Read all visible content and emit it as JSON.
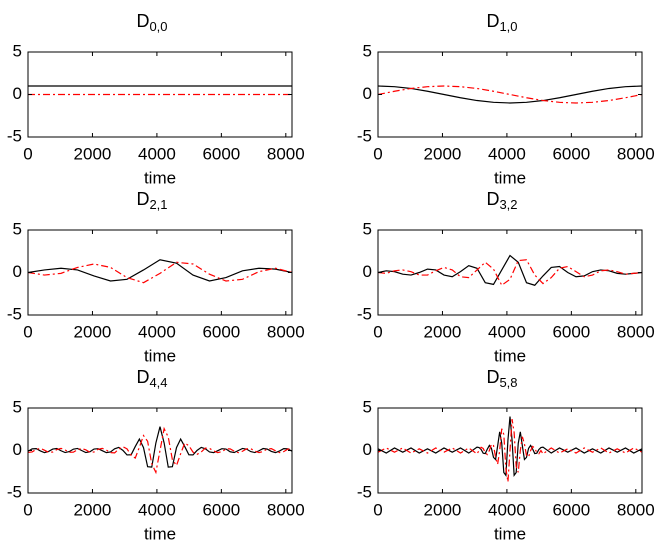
{
  "chart_data": [
    {
      "type": "line",
      "title": "D",
      "title_sub": "0,0",
      "xlabel": "time",
      "xlim": [
        0,
        8192
      ],
      "xticks": [
        0,
        2000,
        4000,
        6000,
        8000
      ],
      "ylim": [
        -5,
        5
      ],
      "yticks": [
        -5,
        0,
        5
      ],
      "x": [
        0,
        8192
      ],
      "series": [
        {
          "color": "#000000",
          "style": "solid",
          "values": [
            1,
            1
          ]
        },
        {
          "color": "#ff0000",
          "style": "dashdot",
          "values": [
            0,
            0
          ]
        }
      ]
    },
    {
      "type": "line",
      "title": "D",
      "title_sub": "1,0",
      "xlabel": "time",
      "xlim": [
        0,
        8192
      ],
      "xticks": [
        0,
        2000,
        4000,
        6000,
        8000
      ],
      "ylim": [
        -5,
        5
      ],
      "yticks": [
        -5,
        0,
        5
      ],
      "x": [
        0,
        512,
        1024,
        1536,
        2048,
        2560,
        3072,
        3584,
        4096,
        4608,
        5120,
        5632,
        6144,
        6656,
        7168,
        7680,
        8192
      ],
      "series": [
        {
          "color": "#000000",
          "style": "solid",
          "values": [
            1,
            0.92,
            0.71,
            0.38,
            0,
            -0.38,
            -0.71,
            -0.92,
            -1,
            -0.92,
            -0.71,
            -0.38,
            0,
            0.38,
            0.71,
            0.92,
            1
          ]
        },
        {
          "color": "#ff0000",
          "style": "dashdot",
          "values": [
            0,
            0.38,
            0.71,
            0.92,
            1,
            0.92,
            0.71,
            0.38,
            0,
            -0.38,
            -0.71,
            -0.92,
            -1,
            -0.92,
            -0.71,
            -0.38,
            0
          ]
        }
      ]
    },
    {
      "type": "line",
      "title": "D",
      "title_sub": "2,1",
      "xlabel": "time",
      "xlim": [
        0,
        8192
      ],
      "xticks": [
        0,
        2000,
        4000,
        6000,
        8000
      ],
      "ylim": [
        -5,
        5
      ],
      "yticks": [
        -5,
        0,
        5
      ],
      "x": [
        0,
        512,
        1024,
        1536,
        2048,
        2560,
        3072,
        3584,
        4096,
        4608,
        5120,
        5632,
        6144,
        6656,
        7168,
        7680,
        8192
      ],
      "series": [
        {
          "color": "#000000",
          "style": "solid",
          "values": [
            0,
            0.3,
            0.5,
            0.3,
            -0.4,
            -1.0,
            -0.8,
            0.3,
            1.5,
            1.1,
            -0.3,
            -1.0,
            -0.6,
            0.2,
            0.5,
            0.4,
            0
          ]
        },
        {
          "color": "#ff0000",
          "style": "dashdot",
          "values": [
            0,
            -0.3,
            -0.1,
            0.6,
            1.0,
            0.6,
            -0.6,
            -1.2,
            -0.1,
            1.2,
            1.0,
            -0.2,
            -1.0,
            -0.8,
            0.1,
            0.5,
            0
          ]
        }
      ]
    },
    {
      "type": "line",
      "title": "D",
      "title_sub": "3,2",
      "xlabel": "time",
      "xlim": [
        0,
        8192
      ],
      "xticks": [
        0,
        2000,
        4000,
        6000,
        8000
      ],
      "ylim": [
        -5,
        5
      ],
      "yticks": [
        -5,
        0,
        5
      ],
      "x": [
        0,
        256,
        512,
        768,
        1024,
        1280,
        1536,
        1792,
        2048,
        2304,
        2560,
        2816,
        3072,
        3328,
        3584,
        3840,
        4096,
        4352,
        4608,
        4864,
        5120,
        5376,
        5632,
        5888,
        6144,
        6400,
        6656,
        6912,
        7168,
        7424,
        7680,
        7936,
        8192
      ],
      "series": [
        {
          "color": "#000000",
          "style": "solid",
          "values": [
            0,
            0.2,
            0.1,
            -0.2,
            -0.3,
            0,
            0.4,
            0.3,
            -0.3,
            -0.5,
            0.1,
            0.8,
            0.5,
            -1.2,
            -1.4,
            0.3,
            2.0,
            1.2,
            -1.2,
            -1.5,
            -0.4,
            0.6,
            0.7,
            0,
            -0.5,
            -0.4,
            0.1,
            0.3,
            0.2,
            -0.1,
            -0.2,
            -0.1,
            0
          ]
        },
        {
          "color": "#ff0000",
          "style": "dashdot",
          "values": [
            0,
            -0.1,
            0.2,
            0.3,
            0.1,
            -0.3,
            -0.3,
            0.2,
            0.6,
            0.3,
            -0.5,
            -0.6,
            0.3,
            1.2,
            0.4,
            -1.5,
            -0.8,
            1.4,
            1.5,
            -0.3,
            -1.3,
            -0.6,
            0.5,
            0.7,
            0.1,
            -0.5,
            -0.3,
            0.2,
            0.3,
            0.1,
            -0.2,
            -0.1,
            0
          ]
        }
      ]
    },
    {
      "type": "line",
      "title": "D",
      "title_sub": "4,4",
      "xlabel": "time",
      "xlim": [
        0,
        8192
      ],
      "xticks": [
        0,
        2000,
        4000,
        6000,
        8000
      ],
      "ylim": [
        -5,
        5
      ],
      "yticks": [
        -5,
        0,
        5
      ],
      "x": [
        0,
        128,
        256,
        384,
        512,
        640,
        768,
        896,
        1024,
        1152,
        1280,
        1408,
        1536,
        1664,
        1792,
        1920,
        2048,
        2176,
        2304,
        2432,
        2560,
        2688,
        2816,
        2944,
        3072,
        3200,
        3328,
        3456,
        3584,
        3712,
        3840,
        3968,
        4096,
        4224,
        4352,
        4480,
        4608,
        4736,
        4864,
        4992,
        5120,
        5248,
        5376,
        5504,
        5632,
        5760,
        5888,
        6016,
        6144,
        6272,
        6400,
        6528,
        6656,
        6784,
        6912,
        7040,
        7168,
        7296,
        7424,
        7552,
        7680,
        7808,
        7936,
        8064,
        8192
      ],
      "series": [
        {
          "color": "#000000",
          "style": "solid",
          "values": [
            -0.09,
            0.19,
            0.22,
            -0.05,
            -0.25,
            -0.11,
            0.17,
            0.23,
            -0.03,
            -0.24,
            -0.13,
            0.16,
            0.24,
            0,
            -0.24,
            -0.15,
            0.17,
            0.21,
            -0.02,
            -0.25,
            -0.17,
            0.2,
            0.36,
            0.02,
            -0.52,
            -0.5,
            0.46,
            1.34,
            0.34,
            -1.91,
            -1.95,
            0.89,
            2.8,
            0.89,
            -1.95,
            -1.91,
            0.34,
            1.34,
            0.46,
            -0.5,
            -0.52,
            0.02,
            0.36,
            0.2,
            -0.17,
            -0.25,
            -0.02,
            0.21,
            0.17,
            -0.15,
            -0.24,
            0,
            0.24,
            0.16,
            -0.13,
            -0.24,
            -0.03,
            0.23,
            0.17,
            -0.11,
            -0.25,
            -0.05,
            0.22,
            0.19,
            -0.09
          ]
        },
        {
          "color": "#ff0000",
          "style": "dashdot",
          "values": [
            -0.23,
            -0.17,
            0.13,
            0.25,
            0.04,
            -0.22,
            -0.18,
            0.11,
            0.25,
            0.06,
            -0.21,
            -0.2,
            0.09,
            0.25,
            0.08,
            -0.2,
            -0.18,
            0.14,
            0.25,
            0.05,
            -0.25,
            -0.28,
            0.17,
            0.45,
            0.19,
            -0.56,
            -0.89,
            0.39,
            1.76,
            1.08,
            -1.58,
            -2.57,
            0,
            2.57,
            1.58,
            -1.08,
            -1.76,
            -0.39,
            0.89,
            0.56,
            -0.19,
            -0.45,
            -0.17,
            0.28,
            0.25,
            -0.05,
            -0.25,
            -0.14,
            0.18,
            0.2,
            -0.08,
            -0.25,
            -0.09,
            0.2,
            0.21,
            -0.06,
            -0.25,
            -0.11,
            0.18,
            0.22,
            -0.04,
            -0.25,
            -0.13,
            0.17,
            0.23
          ]
        }
      ]
    },
    {
      "type": "line",
      "title": "D",
      "title_sub": "5,8",
      "xlabel": "time",
      "xlim": [
        0,
        8192
      ],
      "xticks": [
        0,
        2000,
        4000,
        6000,
        8000
      ],
      "ylim": [
        -5,
        5
      ],
      "yticks": [
        -5,
        0,
        5
      ],
      "x": [
        0,
        256,
        512,
        768,
        1024,
        1280,
        1536,
        1792,
        2048,
        2304,
        2560,
        2816,
        3072,
        3136,
        3200,
        3264,
        3328,
        3392,
        3456,
        3520,
        3584,
        3648,
        3712,
        3776,
        3840,
        3904,
        3968,
        4032,
        4096,
        4160,
        4224,
        4288,
        4352,
        4416,
        4480,
        4544,
        4608,
        4672,
        4736,
        4800,
        4864,
        4928,
        4992,
        5056,
        5120,
        5376,
        5632,
        5888,
        6144,
        6400,
        6656,
        6912,
        7168,
        7424,
        7680,
        7936,
        8192
      ],
      "series": [
        {
          "color": "#000000",
          "style": "solid",
          "values": [
            0.2,
            -0.3,
            0.3,
            -0.2,
            0.3,
            -0.3,
            0.2,
            -0.3,
            0.3,
            -0.2,
            0.3,
            -0.3,
            0.4,
            0.35,
            0.12,
            -0.32,
            -0.36,
            0.16,
            0.6,
            0.25,
            -0.81,
            -1.05,
            0.53,
            2.2,
            0.84,
            -2.59,
            -2.92,
            1.21,
            4,
            1.21,
            -2.92,
            -2.59,
            0.84,
            2.2,
            0.53,
            -1.05,
            -0.81,
            0.25,
            0.6,
            0.16,
            -0.36,
            -0.32,
            0.12,
            0.35,
            0.4,
            -0.3,
            0.3,
            -0.2,
            0.3,
            -0.3,
            0.2,
            -0.3,
            0.3,
            -0.2,
            0.3,
            -0.3,
            0.2
          ]
        },
        {
          "color": "#ff0000",
          "style": "dashdot",
          "values": [
            -0.2,
            0.3,
            -0.2,
            0.3,
            -0.3,
            0.2,
            -0.3,
            0.3,
            -0.2,
            0.3,
            -0.3,
            0.3,
            -0.4,
            0,
            0.38,
            0.24,
            -0.27,
            -0.48,
            0,
            0.76,
            0.59,
            -0.77,
            -1.62,
            0,
            2.57,
            1.89,
            -2.12,
            -3.7,
            0,
            3.7,
            2.12,
            -1.89,
            -2.57,
            0,
            1.62,
            0.77,
            -0.59,
            -0.76,
            0,
            0.48,
            0.27,
            -0.24,
            -0.38,
            0,
            -0.4,
            0.3,
            -0.3,
            0.2,
            -0.3,
            0.3,
            -0.2,
            0.3,
            -0.3,
            0.2,
            -0.3,
            0.3,
            -0.2
          ]
        }
      ]
    }
  ]
}
